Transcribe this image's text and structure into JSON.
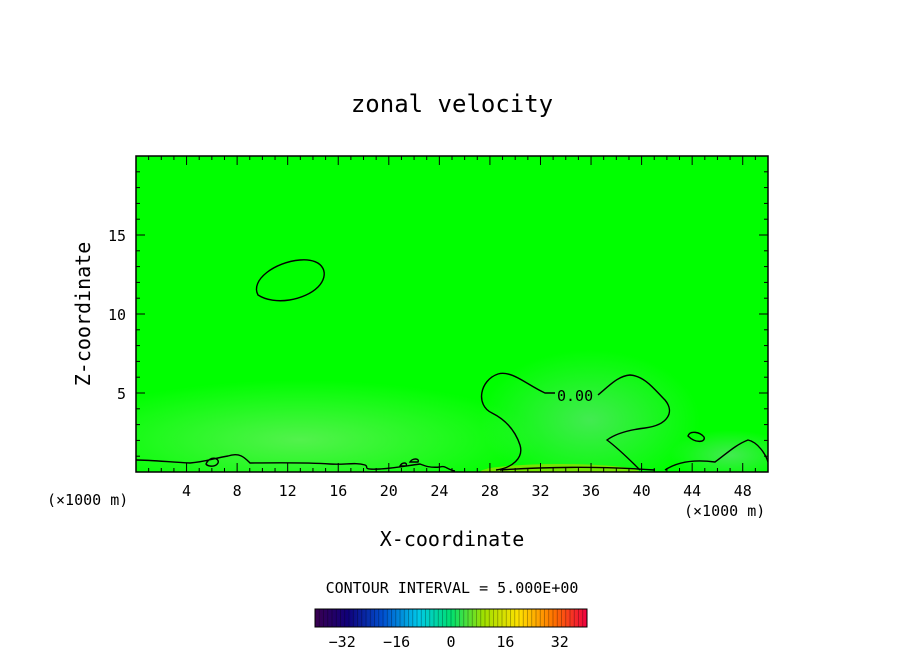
{
  "chart_data": {
    "type": "contour",
    "title": "zonal velocity",
    "xlabel": "X-coordinate",
    "ylabel": "Z-coordinate",
    "x_unit_left": "(×1000 m)",
    "x_unit_right": "(×1000 m)",
    "xlim": [
      0,
      50
    ],
    "ylim": [
      0,
      20
    ],
    "xticks": [
      4,
      8,
      12,
      16,
      20,
      24,
      28,
      32,
      36,
      40,
      44,
      48
    ],
    "yticks": [
      5,
      10,
      15
    ],
    "contour_label": "0.00",
    "contour_interval_text": "CONTOUR INTERVAL = 5.000E+00",
    "colorbar": {
      "min": -40,
      "max": 40,
      "ticks": [
        -32,
        -16,
        0,
        16,
        32
      ],
      "tick_labels": [
        "−32",
        "−16",
        "0",
        "16",
        "32"
      ]
    },
    "field_color": "#00ff00",
    "grid": false
  }
}
